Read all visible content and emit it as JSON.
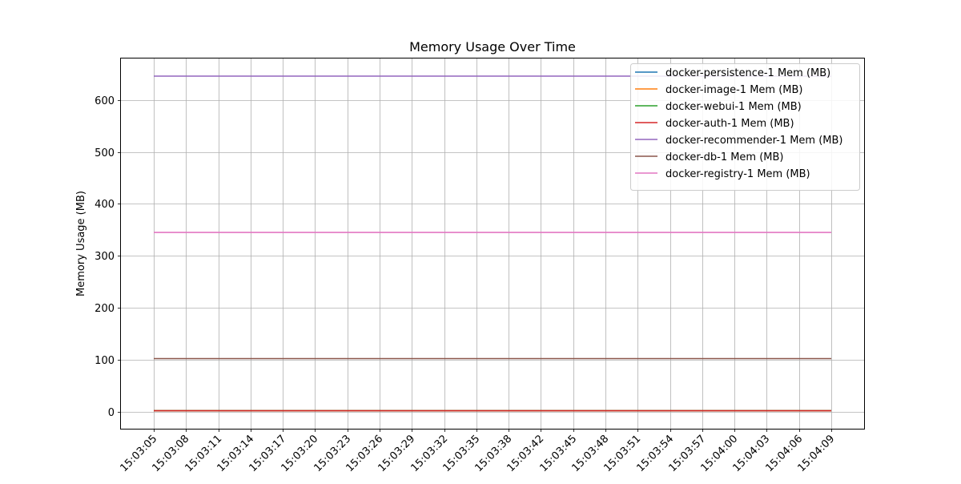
{
  "chart_data": {
    "type": "line",
    "title": "Memory Usage Over Time",
    "xlabel": "",
    "ylabel": "Memory Usage (MB)",
    "x": [
      "15:03:05",
      "15:03:08",
      "15:03:11",
      "15:03:14",
      "15:03:17",
      "15:03:20",
      "15:03:23",
      "15:03:26",
      "15:03:29",
      "15:03:32",
      "15:03:35",
      "15:03:38",
      "15:03:42",
      "15:03:45",
      "15:03:48",
      "15:03:51",
      "15:03:54",
      "15:03:57",
      "15:04:00",
      "15:04:03",
      "15:04:06",
      "15:04:09"
    ],
    "ylim": [
      -33,
      680
    ],
    "yticks": [
      0,
      100,
      200,
      300,
      400,
      500,
      600
    ],
    "grid": true,
    "legend_position": "top-right",
    "series": [
      {
        "name": "docker-persistence-1 Mem (MB)",
        "color": "#1f77b4",
        "values": [
          1.5,
          1.5,
          1.5,
          1.5,
          1.5,
          1.5,
          1.5,
          1.5,
          1.5,
          1.5,
          1.5,
          1.5,
          1.5,
          1.5,
          1.5,
          1.5,
          1.5,
          1.5,
          1.5,
          1.5,
          1.5,
          1.5
        ]
      },
      {
        "name": "docker-image-1 Mem (MB)",
        "color": "#ff7f0e",
        "values": [
          1.5,
          1.5,
          1.5,
          1.5,
          1.5,
          1.5,
          1.5,
          1.5,
          1.5,
          1.5,
          1.5,
          1.5,
          1.5,
          1.5,
          1.5,
          1.5,
          1.5,
          1.5,
          1.5,
          1.5,
          1.5,
          1.5
        ]
      },
      {
        "name": "docker-webui-1 Mem (MB)",
        "color": "#2ca02c",
        "values": [
          1.5,
          1.5,
          1.5,
          1.5,
          1.5,
          1.5,
          1.5,
          1.5,
          1.5,
          1.5,
          1.5,
          1.5,
          1.5,
          1.5,
          1.5,
          1.5,
          1.5,
          1.5,
          1.5,
          1.5,
          1.5,
          1.5
        ]
      },
      {
        "name": "docker-auth-1 Mem (MB)",
        "color": "#d62728",
        "values": [
          1.5,
          1.5,
          1.5,
          1.5,
          1.5,
          1.5,
          1.5,
          1.5,
          1.5,
          1.5,
          1.5,
          1.5,
          1.5,
          1.5,
          1.5,
          1.5,
          1.5,
          1.5,
          1.5,
          1.5,
          1.5,
          1.5
        ]
      },
      {
        "name": "docker-recommender-1 Mem (MB)",
        "color": "#9467bd",
        "values": [
          646,
          646,
          646,
          646,
          646,
          646,
          646,
          646,
          646,
          646,
          646,
          646,
          646,
          646,
          646,
          646,
          646,
          646,
          646,
          646,
          646,
          646
        ]
      },
      {
        "name": "docker-db-1 Mem (MB)",
        "color": "#8c564b",
        "values": [
          102,
          102,
          102,
          102,
          102,
          102,
          102,
          102,
          102,
          102,
          102,
          102,
          102,
          102,
          102,
          102,
          102,
          102,
          102,
          102,
          102,
          102
        ]
      },
      {
        "name": "docker-registry-1 Mem (MB)",
        "color": "#e377c2",
        "values": [
          345,
          345,
          345,
          345,
          345,
          345,
          345,
          345,
          345,
          345,
          345,
          345,
          345,
          345,
          345,
          345,
          345,
          345,
          345,
          345,
          345,
          345
        ]
      }
    ]
  }
}
